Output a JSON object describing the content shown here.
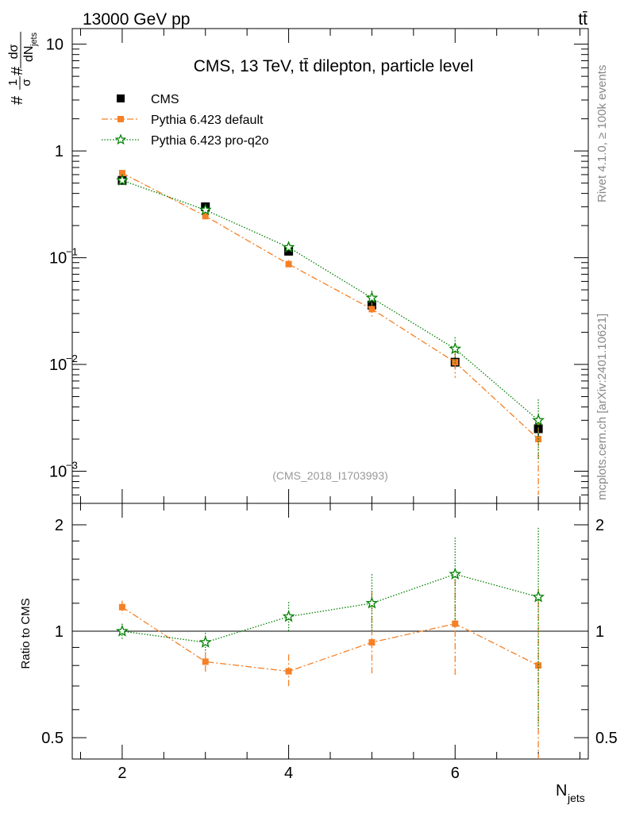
{
  "header": {
    "left": "13000 GeV pp",
    "right": "tt̄"
  },
  "side_labels": {
    "rivet": "Rivet 4.1.0, ≥ 100k events",
    "mcplots": "mcplots.cern.ch [arXiv:2401.10621]"
  },
  "chart_data": [
    {
      "type": "scatter",
      "title": "CMS, 13 TeV, tt̄ dilepton, particle level",
      "watermark": "(CMS_2018_I1703993)",
      "ylabel": "1/σ dσ/dN_jets",
      "ylabel_parts": {
        "hash1": "#",
        "num": "1",
        "den": "σ",
        "hash2": "#",
        "dnum": "dσ",
        "dden": "dN",
        "dsub": "jets"
      },
      "yscale": "log",
      "ylim": [
        0.0005,
        14
      ],
      "xlim": [
        1.4,
        7.6
      ],
      "yticks": [
        {
          "value": 10,
          "label": "10"
        },
        {
          "value": 1,
          "label": "1"
        },
        {
          "value": 0.1,
          "label": "10",
          "exp": "−1"
        },
        {
          "value": 0.01,
          "label": "10",
          "exp": "−2"
        },
        {
          "value": 0.001,
          "label": "10",
          "exp": "−3"
        }
      ],
      "legend_position": "top-left",
      "series": [
        {
          "name": "CMS",
          "color": "#000000",
          "marker": "square",
          "line": "none",
          "x": [
            2,
            3,
            4,
            5,
            6,
            7
          ],
          "y": [
            0.53,
            0.3,
            0.115,
            0.036,
            0.0105,
            0.0025
          ],
          "err": [
            0.015,
            0.01,
            0.006,
            0.003,
            0.0012,
            0.0006
          ]
        },
        {
          "name": "Pythia 6.423 default",
          "color": "#f58025",
          "marker": "square-small",
          "line": "dashdot",
          "x": [
            2,
            3,
            4,
            5,
            6,
            7
          ],
          "y": [
            0.62,
            0.245,
            0.087,
            0.033,
            0.0105,
            0.002
          ],
          "err": [
            0.03,
            0.015,
            0.008,
            0.005,
            0.003,
            0.0014
          ]
        },
        {
          "name": "Pythia 6.423 pro-q2o",
          "color": "#008000",
          "marker": "star",
          "line": "dotted",
          "x": [
            2,
            3,
            4,
            5,
            6,
            7
          ],
          "y": [
            0.53,
            0.28,
            0.125,
            0.042,
            0.014,
            0.003
          ],
          "err": [
            0.02,
            0.015,
            0.01,
            0.007,
            0.004,
            0.0017
          ]
        }
      ]
    },
    {
      "type": "scatter",
      "ylabel": "Ratio to CMS",
      "xlabel": "N",
      "xlabel_sub": "jets",
      "yscale": "log",
      "ylim": [
        0.435,
        2.3
      ],
      "xlim": [
        1.4,
        7.6
      ],
      "xticks": [
        {
          "value": 2,
          "label": "2"
        },
        {
          "value": 4,
          "label": "4"
        },
        {
          "value": 6,
          "label": "6"
        }
      ],
      "yticks": [
        {
          "value": 2,
          "label": "2"
        },
        {
          "value": 1,
          "label": "1"
        },
        {
          "value": 0.5,
          "label": "0.5"
        }
      ],
      "reference_line": 1,
      "series": [
        {
          "name": "Pythia 6.423 default",
          "color": "#f58025",
          "marker": "square-small",
          "line": "dashdot",
          "x": [
            2,
            3,
            4,
            5,
            6,
            7
          ],
          "y": [
            1.17,
            0.82,
            0.77,
            0.93,
            1.05,
            0.8
          ],
          "ylo": [
            1.12,
            0.76,
            0.69,
            0.76,
            0.75,
            0.35
          ],
          "yhi": [
            1.22,
            0.87,
            0.86,
            1.3,
            1.4,
            1.32
          ]
        },
        {
          "name": "Pythia 6.423 pro-q2o",
          "color": "#008000",
          "marker": "star",
          "line": "dotted",
          "x": [
            2,
            3,
            4,
            5,
            6,
            7
          ],
          "y": [
            1.0,
            0.93,
            1.1,
            1.2,
            1.45,
            1.25
          ],
          "ylo": [
            0.95,
            0.87,
            1.0,
            0.99,
            1.07,
            0.53
          ],
          "yhi": [
            1.05,
            0.99,
            1.21,
            1.45,
            1.84,
            1.96
          ]
        }
      ]
    }
  ]
}
